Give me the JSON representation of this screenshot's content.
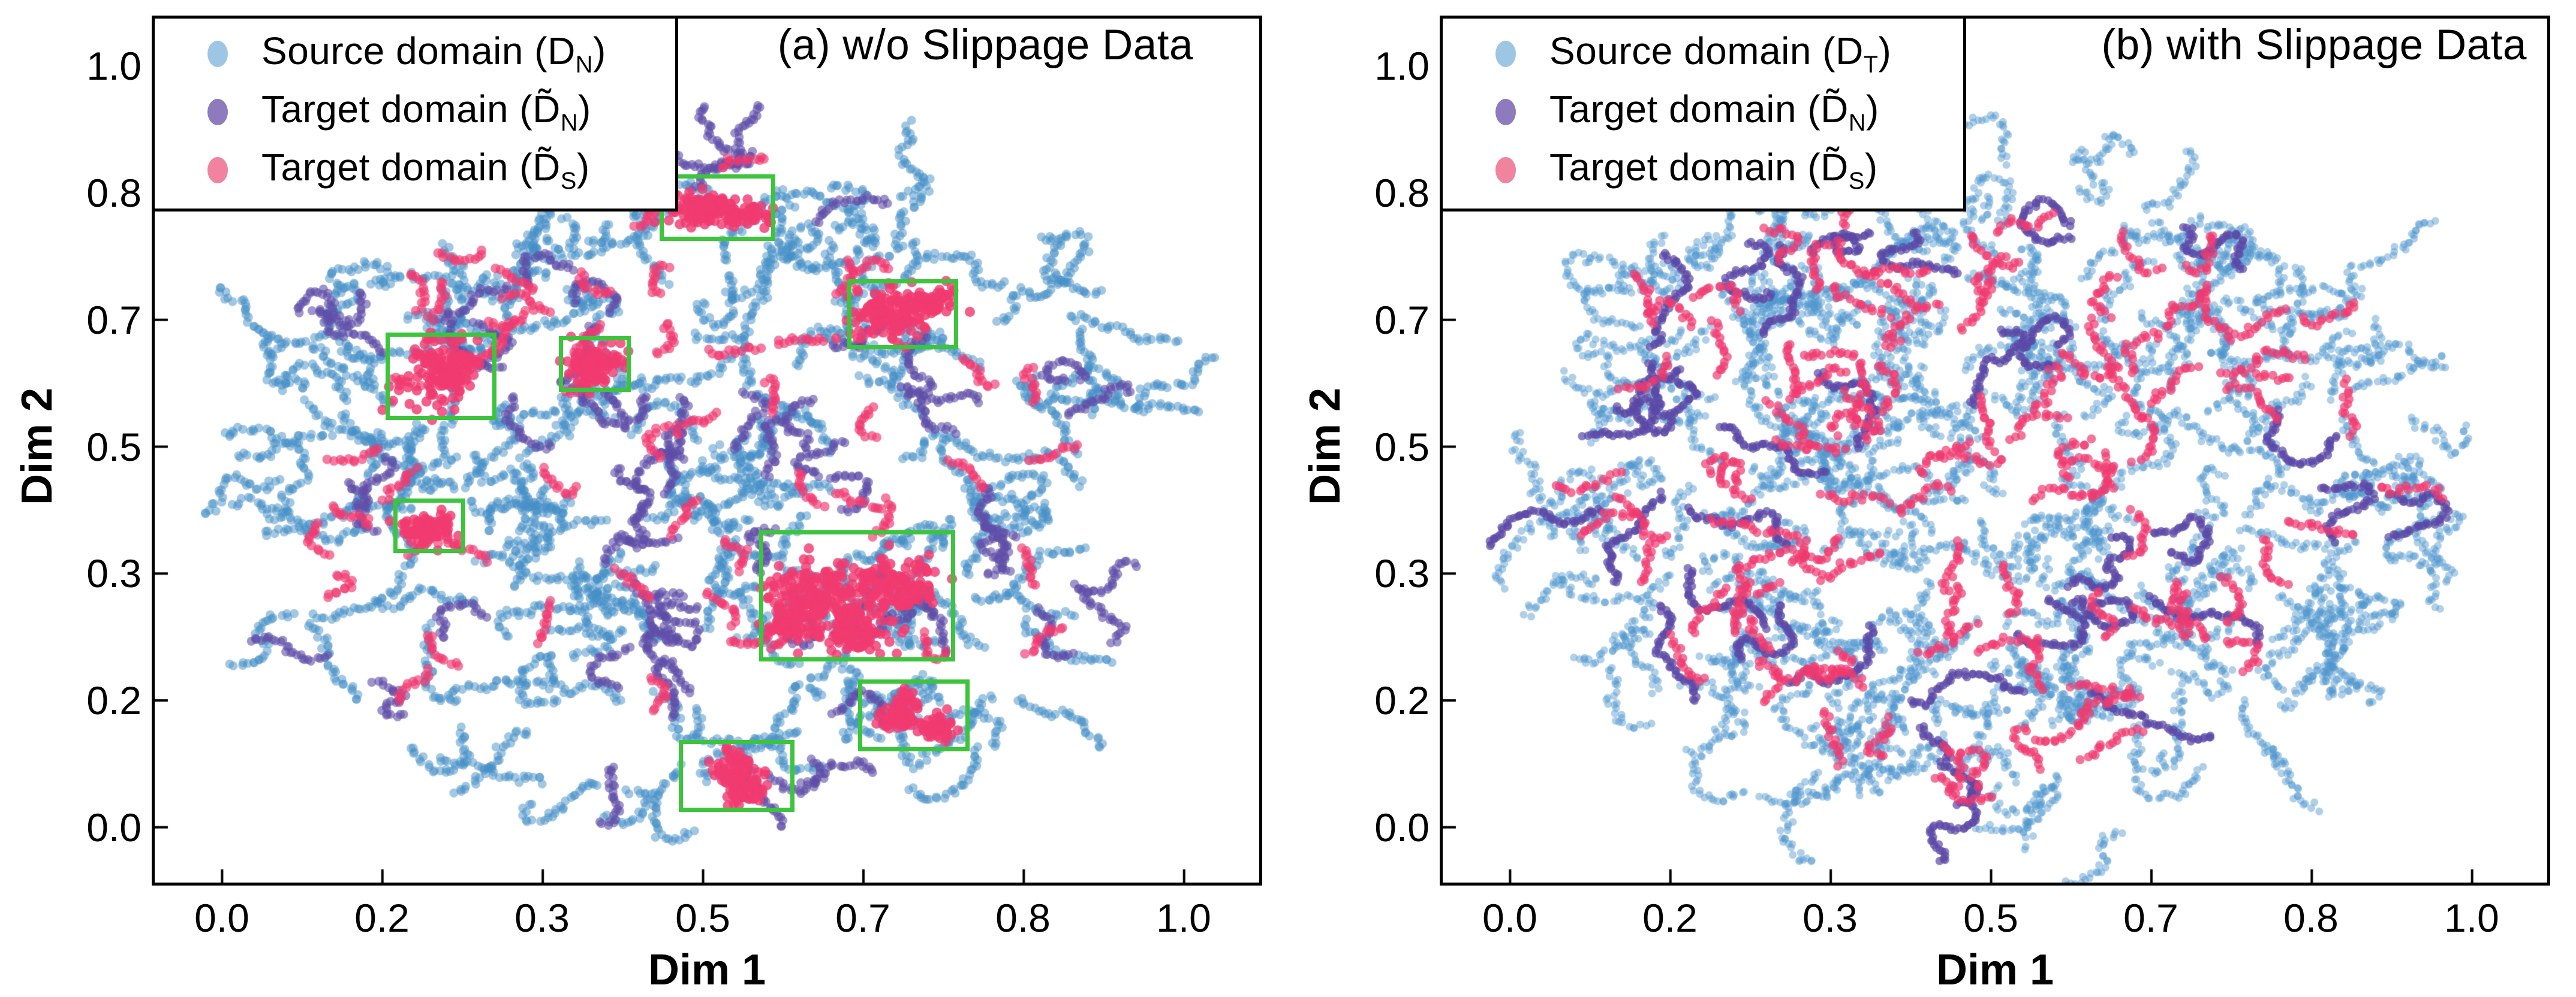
{
  "figure": {
    "background": "#ffffff"
  },
  "chart_data": [
    {
      "panel": "a",
      "type": "scatter",
      "title": "(a) w/o Slippage Data",
      "xlabel": "Dim 1",
      "ylabel": "Dim 2",
      "xlim": [
        -0.07,
        1.08
      ],
      "ylim": [
        -0.07,
        1.06
      ],
      "grid": false,
      "xticks": [
        0,
        0.1667,
        0.3333,
        0.5,
        0.6667,
        0.8333,
        1.0
      ],
      "xticklabels": [
        "0.0",
        "0.2",
        "0.3",
        "0.5",
        "0.7",
        "0.8",
        "1.0"
      ],
      "yticks": [
        0,
        0.1667,
        0.3333,
        0.5,
        0.6667,
        0.8333,
        1.0
      ],
      "yticklabels": [
        "0.0",
        "0.2",
        "0.3",
        "0.5",
        "0.7",
        "0.8",
        "1.0"
      ],
      "legend_position": "upper-left",
      "cloud": {
        "cx": 0.485,
        "cy": 0.465,
        "rx": 0.465,
        "ry": 0.455
      },
      "series": [
        {
          "name": "source-domain",
          "label": "Source domain (D",
          "sub": "N",
          "label_end": ")",
          "color": "#4690c8",
          "legend_color": "#9dc6e4",
          "alpha": 0.5,
          "radius": 7.5,
          "clusters": 155,
          "points_per_cluster": 30,
          "step": 0.0042,
          "jitter": 0.008,
          "max_r": 1.0,
          "seed": 11
        },
        {
          "name": "target-domain-normal",
          "label": "Target domain (D̃",
          "sub": "N",
          "label_end": ")",
          "color": "#5f4fa8",
          "legend_color": "#8d7bbe",
          "alpha": 0.6,
          "radius": 7.5,
          "clusters": 64,
          "points_per_cluster": 26,
          "step": 0.0038,
          "jitter": 0.006,
          "max_r": 0.96,
          "seed": 23
        },
        {
          "name": "target-domain-slippage",
          "label": "Target domain (D̃",
          "sub": "S",
          "label_end": ")",
          "color": "#f03a70",
          "legend_color": "#f0849e",
          "alpha": 0.66,
          "radius": 8,
          "clusters": 56,
          "points_per_cluster": 13,
          "step": 0.0046,
          "jitter": 0.006,
          "max_r": 0.88,
          "seed": 37
        }
      ],
      "slippage_blobs": [
        {
          "x": 0.503,
          "y": 0.812,
          "sx": 0.02,
          "sy": 0.011,
          "n": 130
        },
        {
          "x": 0.548,
          "y": 0.802,
          "sx": 0.01,
          "sy": 0.008,
          "n": 40
        },
        {
          "x": 0.7,
          "y": 0.676,
          "sx": 0.022,
          "sy": 0.016,
          "n": 150
        },
        {
          "x": 0.742,
          "y": 0.692,
          "sx": 0.012,
          "sy": 0.009,
          "n": 45
        },
        {
          "x": 0.225,
          "y": 0.598,
          "sx": 0.02,
          "sy": 0.022,
          "n": 140
        },
        {
          "x": 0.386,
          "y": 0.61,
          "sx": 0.013,
          "sy": 0.013,
          "n": 85
        },
        {
          "x": 0.214,
          "y": 0.392,
          "sx": 0.013,
          "sy": 0.01,
          "n": 85
        },
        {
          "x": 0.628,
          "y": 0.3,
          "sx": 0.03,
          "sy": 0.026,
          "n": 230
        },
        {
          "x": 0.7,
          "y": 0.318,
          "sx": 0.024,
          "sy": 0.018,
          "n": 120
        },
        {
          "x": 0.663,
          "y": 0.252,
          "sx": 0.016,
          "sy": 0.012,
          "n": 70
        },
        {
          "x": 0.588,
          "y": 0.268,
          "sx": 0.012,
          "sy": 0.01,
          "n": 50
        },
        {
          "x": 0.532,
          "y": 0.072,
          "sx": 0.012,
          "sy": 0.018,
          "n": 80
        },
        {
          "x": 0.546,
          "y": 0.048,
          "sx": 0.01,
          "sy": 0.008,
          "n": 35
        },
        {
          "x": 0.703,
          "y": 0.146,
          "sx": 0.009,
          "sy": 0.008,
          "n": 55
        },
        {
          "x": 0.744,
          "y": 0.132,
          "sx": 0.01,
          "sy": 0.008,
          "n": 50
        },
        {
          "x": 0.712,
          "y": 0.168,
          "sx": 0.007,
          "sy": 0.006,
          "n": 25
        }
      ],
      "highlight_color": "#3cc43c",
      "highlight_boxes": [
        {
          "x0": 0.455,
          "x1": 0.575,
          "y0": 0.77,
          "y1": 0.858
        },
        {
          "x0": 0.65,
          "x1": 0.765,
          "y0": 0.628,
          "y1": 0.72
        },
        {
          "x0": 0.17,
          "x1": 0.285,
          "y0": 0.535,
          "y1": 0.65
        },
        {
          "x0": 0.35,
          "x1": 0.425,
          "y0": 0.572,
          "y1": 0.645
        },
        {
          "x0": 0.178,
          "x1": 0.253,
          "y0": 0.36,
          "y1": 0.432
        },
        {
          "x0": 0.558,
          "x1": 0.762,
          "y0": 0.218,
          "y1": 0.39
        },
        {
          "x0": 0.475,
          "x1": 0.595,
          "y0": 0.02,
          "y1": 0.115
        },
        {
          "x0": 0.661,
          "x1": 0.777,
          "y0": 0.1,
          "y1": 0.194
        }
      ]
    },
    {
      "panel": "b",
      "type": "scatter",
      "title": "(b) with Slippage Data",
      "xlabel": "Dim 1",
      "ylabel": "Dim 2",
      "xlim": [
        -0.07,
        1.08
      ],
      "ylim": [
        -0.07,
        1.06
      ],
      "grid": false,
      "xticks": [
        0,
        0.1667,
        0.3333,
        0.5,
        0.6667,
        0.8333,
        1.0
      ],
      "xticklabels": [
        "0.0",
        "0.2",
        "0.3",
        "0.5",
        "0.7",
        "0.8",
        "1.0"
      ],
      "yticks": [
        0,
        0.1667,
        0.3333,
        0.5,
        0.6667,
        0.8333,
        1.0
      ],
      "yticklabels": [
        "0.0",
        "0.2",
        "0.3",
        "0.5",
        "0.7",
        "0.8",
        "1.0"
      ],
      "legend_position": "upper-left",
      "cloud": {
        "cx": 0.5,
        "cy": 0.46,
        "rx": 0.475,
        "ry": 0.465
      },
      "series": [
        {
          "name": "source-domain",
          "label": "Source domain (D",
          "sub": "T",
          "label_end": ")",
          "color": "#4f97cf",
          "legend_color": "#9dc6e4",
          "alpha": 0.45,
          "radius": 6.5,
          "clusters": 250,
          "points_per_cluster": 28,
          "step": 0.004,
          "jitter": 0.009,
          "max_r": 1.0,
          "seed": 101
        },
        {
          "name": "target-domain-normal",
          "label": "Target domain (D̃",
          "sub": "N",
          "label_end": ")",
          "color": "#5b49a6",
          "legend_color": "#8d7bbe",
          "alpha": 0.7,
          "radius": 7,
          "clusters": 33,
          "points_per_cluster": 48,
          "step": 0.0033,
          "jitter": 0.005,
          "max_r": 0.88,
          "seed": 202
        },
        {
          "name": "target-domain-slippage",
          "label": "Target domain (D̃",
          "sub": "S",
          "label_end": ")",
          "color": "#f03a70",
          "legend_color": "#f0849e",
          "alpha": 0.7,
          "radius": 7.5,
          "clusters": 100,
          "points_per_cluster": 16,
          "step": 0.005,
          "jitter": 0.007,
          "max_r": 0.84,
          "seed": 303
        }
      ],
      "slippage_blobs": [],
      "highlight_color": "#3cc43c",
      "highlight_boxes": []
    }
  ]
}
